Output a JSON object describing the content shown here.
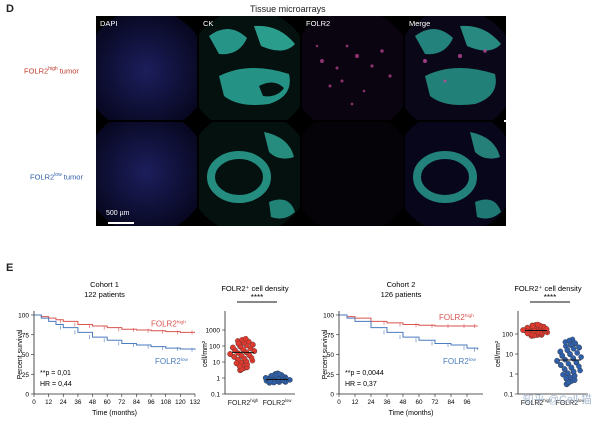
{
  "panel_d": {
    "letter": "D",
    "title": "Tissue microarrays",
    "columns": [
      "DAPI",
      "CK",
      "FOLR2",
      "Merge"
    ],
    "rows": [
      {
        "label_main": "FOLR2",
        "label_sup": "high",
        "label_tail": " tumor",
        "color": "#c0392b"
      },
      {
        "label_main": "FOLR2",
        "label_sup": "low",
        "label_tail": " tumor",
        "color": "#2e5fa8"
      }
    ],
    "scale_bar": "500 µm"
  },
  "panel_e": {
    "letter": "E",
    "density_title": "FOLR2⁺ cell density",
    "significance": "****",
    "ylabel_survival": "Percent survival",
    "xlabel_survival": "Time (months)",
    "ylabel_density": "cell/mm²",
    "xcat": [
      "FOLR2high",
      "FOLR2low"
    ]
  },
  "chart_data": [
    {
      "type": "line",
      "title": "Cohort 1",
      "subtitle": "122 patients",
      "xlabel": "Time (months)",
      "ylabel": "Percent survival",
      "xlim": [
        0,
        132
      ],
      "ylim": [
        0,
        100
      ],
      "xticks": [
        0,
        12,
        24,
        36,
        48,
        60,
        72,
        84,
        96,
        108,
        120,
        132
      ],
      "yticks": [
        0,
        25,
        50,
        75,
        100
      ],
      "stats": [
        "**p = 0,01",
        "HR = 0,44"
      ],
      "series": [
        {
          "name": "FOLR2high",
          "color": "#d9534f",
          "x": [
            0,
            6,
            12,
            18,
            24,
            36,
            48,
            60,
            72,
            84,
            96,
            108,
            120,
            132
          ],
          "y": [
            100,
            98,
            96,
            94,
            92,
            88,
            86,
            84,
            82,
            81,
            80,
            79,
            78,
            78
          ]
        },
        {
          "name": "FOLR2low",
          "color": "#4a7bbf",
          "x": [
            0,
            6,
            12,
            18,
            24,
            36,
            48,
            60,
            72,
            84,
            96,
            108,
            120,
            132
          ],
          "y": [
            100,
            96,
            92,
            88,
            84,
            78,
            72,
            68,
            64,
            62,
            60,
            58,
            57,
            56
          ]
        }
      ]
    },
    {
      "type": "scatter",
      "title": "FOLR2⁺ cell density",
      "ylabel": "cell/mm²",
      "yscale": "log",
      "yticks": [
        "0.1",
        "1",
        "10",
        "100",
        "1000"
      ],
      "categories": [
        "FOLR2high",
        "FOLR2low"
      ],
      "significance": "****",
      "series": [
        {
          "name": "FOLR2high",
          "color": "#e03a2f",
          "median": 40,
          "range": [
            3,
            300
          ]
        },
        {
          "name": "FOLR2low",
          "color": "#2e5fa8",
          "median": 0.8,
          "range": [
            0.5,
            2
          ]
        }
      ]
    },
    {
      "type": "line",
      "title": "Cohort 2",
      "subtitle": "126 patients",
      "xlabel": "Time (months)",
      "ylabel": "Percent survival",
      "xlim": [
        0,
        108
      ],
      "ylim": [
        0,
        100
      ],
      "xticks": [
        0,
        12,
        24,
        36,
        48,
        60,
        72,
        84,
        96
      ],
      "yticks": [
        0,
        25,
        50,
        75,
        100
      ],
      "stats": [
        "**p = 0,0044",
        "HR = 0,37"
      ],
      "series": [
        {
          "name": "FOLR2high",
          "color": "#d9534f",
          "x": [
            0,
            6,
            12,
            24,
            36,
            48,
            60,
            72,
            84,
            96,
            104
          ],
          "y": [
            100,
            98,
            96,
            92,
            90,
            88,
            87,
            86,
            86,
            86,
            86
          ]
        },
        {
          "name": "FOLR2low",
          "color": "#4a7bbf",
          "x": [
            0,
            6,
            12,
            24,
            36,
            48,
            60,
            72,
            84,
            96,
            104
          ],
          "y": [
            100,
            96,
            92,
            84,
            78,
            72,
            68,
            64,
            62,
            58,
            56
          ]
        }
      ]
    },
    {
      "type": "scatter",
      "title": "FOLR2⁺ cell density",
      "ylabel": "cell/mm²",
      "yscale": "log",
      "yticks": [
        "0.1",
        "1",
        "10",
        "100"
      ],
      "categories": [
        "FOLR2high",
        "FOLR2low"
      ],
      "significance": "****",
      "series": [
        {
          "name": "FOLR2high",
          "color": "#e03a2f",
          "median": 150,
          "range": [
            80,
            300
          ]
        },
        {
          "name": "FOLR2low",
          "color": "#2e5fa8",
          "median": 5,
          "range": [
            0.3,
            60
          ]
        }
      ]
    }
  ]
}
